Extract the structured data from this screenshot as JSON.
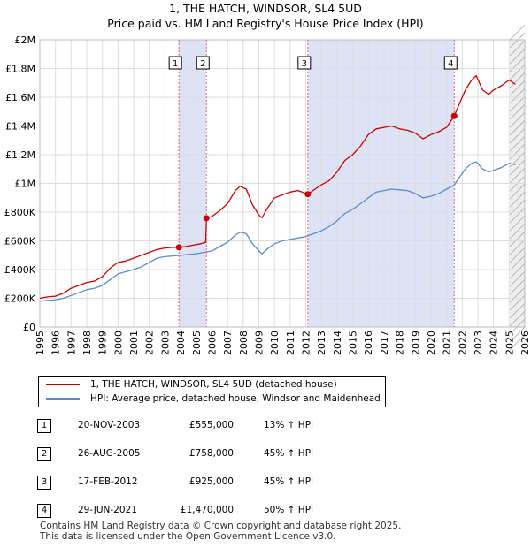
{
  "title": "1, THE HATCH, WINDSOR, SL4 5UD",
  "subtitle": "Price paid vs. HM Land Registry's House Price Index (HPI)",
  "colors": {
    "property": "#cc0000",
    "hpi": "#5b8bc8",
    "shade": "#dde3f4",
    "marker_line": "#e06070",
    "forecast": "#aaaaaa"
  },
  "chart_data": {
    "type": "line",
    "title": "1, THE HATCH, WINDSOR, SL4 5UD",
    "xlim": [
      1995,
      2026
    ],
    "ylim": [
      0,
      2000000
    ],
    "y_ticks": [
      0,
      200000,
      400000,
      600000,
      800000,
      1000000,
      1200000,
      1400000,
      1600000,
      1800000,
      2000000
    ],
    "y_tick_labels": [
      "£0",
      "£200K",
      "£400K",
      "£600K",
      "£800K",
      "£1M",
      "£1.2M",
      "£1.4M",
      "£1.6M",
      "£1.8M",
      "£2M"
    ],
    "x_ticks": [
      1995,
      1996,
      1997,
      1998,
      1999,
      2000,
      2001,
      2002,
      2003,
      2004,
      2005,
      2006,
      2007,
      2008,
      2009,
      2010,
      2011,
      2012,
      2013,
      2014,
      2015,
      2016,
      2017,
      2018,
      2019,
      2020,
      2021,
      2022,
      2023,
      2024,
      2025,
      2026
    ],
    "x_tick_labels": [
      "1995",
      "1996",
      "1997",
      "1998",
      "1999",
      "2000",
      "2001",
      "2002",
      "2003",
      "2004",
      "2005",
      "2006",
      "2007",
      "2008",
      "2009",
      "2010",
      "2011",
      "2012",
      "2013",
      "2014",
      "2015",
      "2016",
      "2017",
      "2018",
      "2019",
      "2020",
      "2021",
      "2022",
      "2023",
      "2024",
      "2025",
      "2026"
    ],
    "shaded_ranges": [
      [
        2003.89,
        2005.65
      ],
      [
        2012.13,
        2021.49
      ]
    ],
    "forecast_from": 2025.05,
    "series": [
      {
        "name": "1, THE HATCH, WINDSOR, SL4 5UD (detached house)",
        "x": [
          1995.0,
          1995.5,
          1996.0,
          1996.5,
          1997.0,
          1997.5,
          1998.0,
          1998.5,
          1999.0,
          1999.5,
          2000.0,
          2000.5,
          2001.0,
          2001.5,
          2002.0,
          2002.5,
          2003.0,
          2003.5,
          2003.89,
          2004.3,
          2004.8,
          2005.3,
          2005.6,
          2005.65,
          2006.0,
          2006.5,
          2007.0,
          2007.5,
          2007.8,
          2008.2,
          2008.6,
          2009.0,
          2009.2,
          2009.5,
          2010.0,
          2010.5,
          2011.0,
          2011.5,
          2012.13,
          2012.6,
          2013.0,
          2013.5,
          2014.0,
          2014.5,
          2015.0,
          2015.5,
          2016.0,
          2016.5,
          2017.0,
          2017.5,
          2018.0,
          2018.5,
          2019.0,
          2019.5,
          2020.0,
          2020.5,
          2021.0,
          2021.49,
          2021.8,
          2022.2,
          2022.6,
          2022.9,
          2023.3,
          2023.7,
          2024.0,
          2024.5,
          2025.0,
          2025.4
        ],
        "y": [
          200000,
          210000,
          215000,
          235000,
          270000,
          290000,
          310000,
          320000,
          350000,
          410000,
          450000,
          460000,
          480000,
          500000,
          520000,
          540000,
          550000,
          555000,
          555000,
          560000,
          570000,
          580000,
          590000,
          758000,
          770000,
          810000,
          860000,
          950000,
          980000,
          960000,
          850000,
          780000,
          760000,
          820000,
          900000,
          920000,
          940000,
          950000,
          925000,
          960000,
          990000,
          1020000,
          1080000,
          1160000,
          1200000,
          1260000,
          1340000,
          1380000,
          1390000,
          1400000,
          1380000,
          1370000,
          1350000,
          1310000,
          1340000,
          1360000,
          1390000,
          1470000,
          1550000,
          1650000,
          1720000,
          1750000,
          1650000,
          1620000,
          1650000,
          1680000,
          1720000,
          1690000
        ]
      },
      {
        "name": "HPI: Average price, detached house, Windsor and Maidenhead",
        "x": [
          1995.0,
          1995.5,
          1996.0,
          1996.5,
          1997.0,
          1997.5,
          1998.0,
          1998.5,
          1999.0,
          1999.5,
          2000.0,
          2000.5,
          2001.0,
          2001.5,
          2002.0,
          2002.5,
          2003.0,
          2003.5,
          2004.0,
          2004.5,
          2005.0,
          2005.5,
          2006.0,
          2006.5,
          2007.0,
          2007.5,
          2007.8,
          2008.2,
          2008.6,
          2009.0,
          2009.2,
          2009.5,
          2010.0,
          2010.5,
          2011.0,
          2011.5,
          2012.0,
          2012.5,
          2013.0,
          2013.5,
          2014.0,
          2014.5,
          2015.0,
          2015.5,
          2016.0,
          2016.5,
          2017.0,
          2017.5,
          2018.0,
          2018.5,
          2019.0,
          2019.5,
          2020.0,
          2020.5,
          2021.0,
          2021.5,
          2021.8,
          2022.2,
          2022.6,
          2022.9,
          2023.3,
          2023.7,
          2024.0,
          2024.5,
          2025.0,
          2025.4
        ],
        "y": [
          180000,
          185000,
          190000,
          200000,
          220000,
          240000,
          260000,
          270000,
          290000,
          330000,
          370000,
          385000,
          400000,
          420000,
          450000,
          480000,
          490000,
          495000,
          500000,
          505000,
          510000,
          520000,
          530000,
          560000,
          590000,
          640000,
          660000,
          650000,
          580000,
          530000,
          510000,
          540000,
          580000,
          600000,
          610000,
          620000,
          630000,
          650000,
          670000,
          700000,
          740000,
          790000,
          820000,
          860000,
          900000,
          940000,
          950000,
          960000,
          955000,
          950000,
          930000,
          900000,
          910000,
          930000,
          960000,
          990000,
          1040000,
          1100000,
          1140000,
          1150000,
          1100000,
          1080000,
          1090000,
          1110000,
          1140000,
          1130000
        ]
      }
    ],
    "transactions": [
      {
        "label": "1",
        "x": 2003.89,
        "y": 555000
      },
      {
        "label": "2",
        "x": 2005.65,
        "y": 758000
      },
      {
        "label": "3",
        "x": 2012.13,
        "y": 925000
      },
      {
        "label": "4",
        "x": 2021.49,
        "y": 1470000
      }
    ]
  },
  "legend": [
    {
      "label": "1, THE HATCH, WINDSOR, SL4 5UD (detached house)"
    },
    {
      "label": "HPI: Average price, detached house, Windsor and Maidenhead"
    }
  ],
  "transactions_table": [
    {
      "num": "1",
      "date": "20-NOV-2003",
      "price": "£555,000",
      "hpi": "13% ↑ HPI"
    },
    {
      "num": "2",
      "date": "26-AUG-2005",
      "price": "£758,000",
      "hpi": "45% ↑ HPI"
    },
    {
      "num": "3",
      "date": "17-FEB-2012",
      "price": "£925,000",
      "hpi": "45% ↑ HPI"
    },
    {
      "num": "4",
      "date": "29-JUN-2021",
      "price": "£1,470,000",
      "hpi": "50% ↑ HPI"
    }
  ],
  "footer": {
    "line1": "Contains HM Land Registry data © Crown copyright and database right 2025.",
    "line2": "This data is licensed under the Open Government Licence v3.0."
  }
}
